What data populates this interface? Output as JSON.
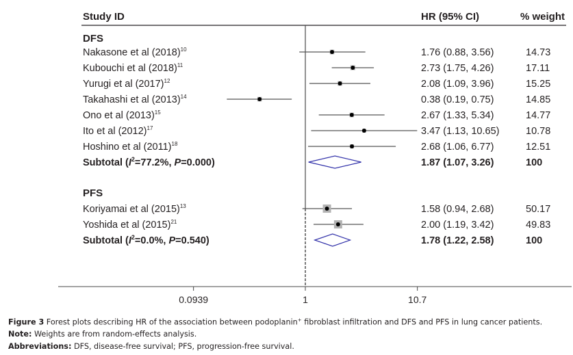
{
  "chart_data": {
    "type": "forest",
    "scale": "log",
    "columns": {
      "study": "Study ID",
      "hr": "HR (95% CI)",
      "weight": "% weight"
    },
    "null_value": 1,
    "xaxis": {
      "ticks": [
        0.0939,
        1,
        10.7
      ],
      "tick_labels": [
        "0.0939",
        "1",
        "10.7"
      ]
    },
    "groups": [
      {
        "name": "DFS",
        "studies": [
          {
            "label": "Nakasone et al (2018)",
            "ref": "10",
            "hr": 1.76,
            "lo": 0.88,
            "hi": 3.56,
            "hr_text": "1.76 (0.88, 3.56)",
            "weight": "14.73"
          },
          {
            "label": "Kubouchi et al (2018)",
            "ref": "11",
            "hr": 2.73,
            "lo": 1.75,
            "hi": 4.26,
            "hr_text": "2.73 (1.75, 4.26)",
            "weight": "17.11"
          },
          {
            "label": "Yurugi et al (2017)",
            "ref": "12",
            "hr": 2.08,
            "lo": 1.09,
            "hi": 3.96,
            "hr_text": "2.08 (1.09, 3.96)",
            "weight": "15.25"
          },
          {
            "label": "Takahashi et al (2013)",
            "ref": "14",
            "hr": 0.38,
            "lo": 0.19,
            "hi": 0.75,
            "hr_text": "0.38 (0.19, 0.75)",
            "weight": "14.85"
          },
          {
            "label": "Ono et al (2013)",
            "ref": "15",
            "hr": 2.67,
            "lo": 1.33,
            "hi": 5.34,
            "hr_text": "2.67 (1.33, 5.34)",
            "weight": "14.77"
          },
          {
            "label": "Ito et al (2012)",
            "ref": "17",
            "hr": 3.47,
            "lo": 1.13,
            "hi": 10.65,
            "hr_text": "3.47 (1.13, 10.65)",
            "weight": "10.78"
          },
          {
            "label": "Hoshino et al (2011)",
            "ref": "18",
            "hr": 2.68,
            "lo": 1.06,
            "hi": 6.77,
            "hr_text": "2.68 (1.06, 6.77)",
            "weight": "12.51"
          }
        ],
        "subtotal": {
          "prefix": "Subtotal (",
          "i2_label": "I",
          "i2_rest": "=77.2%, ",
          "p_label": "P",
          "p_rest": "=0.000)",
          "hr": 1.87,
          "lo": 1.07,
          "hi": 3.26,
          "hr_text": "1.87 (1.07, 3.26)",
          "weight": "100"
        }
      },
      {
        "name": "PFS",
        "studies": [
          {
            "label": "Koriyamai et al (2015)",
            "ref": "13",
            "hr": 1.58,
            "lo": 0.94,
            "hi": 2.68,
            "hr_text": "1.58 (0.94, 2.68)",
            "weight": "50.17"
          },
          {
            "label": "Yoshida et al (2015)",
            "ref": "21",
            "hr": 2.0,
            "lo": 1.19,
            "hi": 3.42,
            "hr_text": "2.00 (1.19, 3.42)",
            "weight": "49.83"
          }
        ],
        "subtotal": {
          "prefix": "Subtotal (",
          "i2_label": "I",
          "i2_rest": "=0.0%, ",
          "p_label": "P",
          "p_rest": "=0.540)",
          "hr": 1.78,
          "lo": 1.22,
          "hi": 2.58,
          "hr_text": "1.78 (1.22, 2.58)",
          "weight": "100"
        }
      }
    ],
    "colors": {
      "text": "#231f20",
      "ci_line": "#555555",
      "point": "#000000",
      "weight_box": "#b3b3b3",
      "diamond": "#3333aa"
    }
  },
  "caption": {
    "figure_label": "Figure 3",
    "figure_text_a": " Forest plots describing HR of the association between podoplanin",
    "figure_sup": "+",
    "figure_text_b": " fibroblast infiltration and DFS and PFS in lung cancer patients.",
    "note_label": "Note:",
    "note_text": " Weights are from random-effects analysis.",
    "abbr_label": "Abbreviations:",
    "abbr_text": " DFS, disease-free survival; PFS, progression-free survival."
  }
}
